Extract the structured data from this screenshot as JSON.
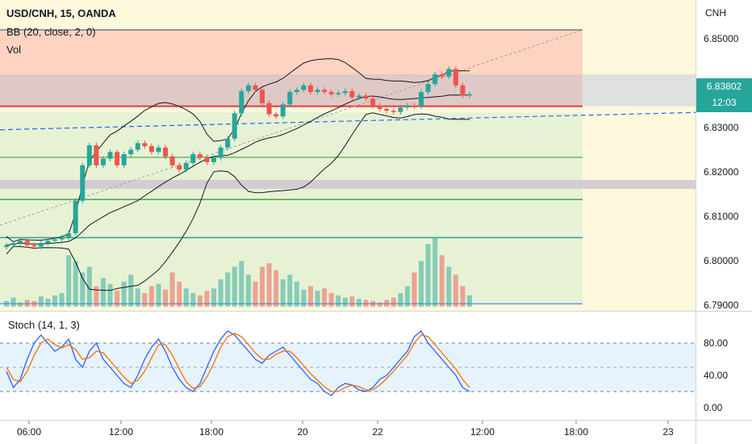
{
  "header": {
    "symbol_line": "USD/CNH, 15, OANDA",
    "bb_line": "BB (20, close, 2, 0)",
    "vol_line": "Vol",
    "currency": "CNH"
  },
  "price_tag": {
    "price": "6.83802",
    "countdown": "12:03"
  },
  "chart_data": [
    {
      "type": "candlestick",
      "title": "USD/CNH, 15, OANDA",
      "y_ticks": [
        "6.85000",
        "6.84000",
        "6.83000",
        "6.82000",
        "6.81000",
        "6.80000",
        "6.79000"
      ],
      "ylim": [
        6.79,
        6.856
      ],
      "x_ticks": [
        "06:00",
        "12:00",
        "18:00",
        "20",
        "22",
        "12:00",
        "18:00",
        "23"
      ],
      "last_price": 6.83802,
      "close_series": [
        6.8035,
        6.804,
        6.8045,
        6.8035,
        6.8032,
        6.804,
        6.8045,
        6.8048,
        6.8052,
        6.8062,
        6.8135,
        6.8215,
        6.826,
        6.8215,
        6.823,
        6.8245,
        6.8215,
        6.824,
        6.825,
        6.8265,
        6.8258,
        6.8245,
        6.8255,
        6.8235,
        6.8215,
        6.8205,
        6.822,
        6.824,
        6.8232,
        6.8222,
        6.8232,
        6.8255,
        6.8275,
        6.8332,
        6.8382,
        6.8395,
        6.8385,
        6.8355,
        6.833,
        6.8325,
        6.8352,
        6.838,
        6.8385,
        6.8395,
        6.838,
        6.8385,
        6.838,
        6.8375,
        6.8378,
        6.8382,
        6.8368,
        6.8372,
        6.8365,
        6.835,
        6.8342,
        6.8338,
        6.8335,
        6.8345,
        6.835,
        6.8348,
        6.838,
        6.8398,
        6.842,
        6.8415,
        6.8432,
        6.8395,
        6.8372,
        6.8375
      ],
      "volume_series": [
        5,
        8,
        4,
        6,
        5,
        9,
        7,
        10,
        12,
        45,
        40,
        30,
        35,
        18,
        25,
        20,
        14,
        22,
        28,
        16,
        12,
        18,
        20,
        15,
        30,
        22,
        16,
        12,
        10,
        14,
        16,
        24,
        30,
        35,
        40,
        28,
        22,
        35,
        38,
        32,
        24,
        28,
        22,
        15,
        18,
        14,
        16,
        12,
        10,
        8,
        9,
        7,
        6,
        5,
        4,
        6,
        8,
        12,
        18,
        30,
        40,
        55,
        60,
        45,
        35,
        28,
        18,
        10
      ],
      "bands": [
        {
          "label": "orange zone",
          "from": 6.8348,
          "to": 6.852,
          "color": "#ffccbc"
        },
        {
          "label": "grey zone",
          "from": 6.8348,
          "to": 6.842,
          "color": "#d9c7c7"
        },
        {
          "label": "green zone",
          "from": 6.7903,
          "to": 6.8334,
          "color": "#e3f1d3"
        },
        {
          "label": "purple zone",
          "from": 6.8162,
          "to": 6.8182,
          "color": "#cfc5d0"
        }
      ],
      "levels": [
        6.852,
        6.8348,
        6.8233,
        6.8138,
        6.8052,
        6.7903
      ]
    },
    {
      "type": "line",
      "title": "Stoch (14, 1, 3)",
      "y_ticks": [
        "80.00",
        "40.00",
        "0.00"
      ],
      "ylim": [
        -10,
        105
      ],
      "upper_band": 80,
      "lower_band": 20,
      "k_series": [
        45,
        25,
        35,
        60,
        80,
        90,
        80,
        70,
        75,
        85,
        60,
        50,
        70,
        80,
        60,
        50,
        40,
        30,
        25,
        40,
        60,
        75,
        85,
        70,
        50,
        35,
        25,
        20,
        30,
        50,
        70,
        85,
        95,
        90,
        80,
        70,
        60,
        55,
        65,
        70,
        75,
        65,
        55,
        45,
        35,
        30,
        20,
        15,
        25,
        30,
        28,
        22,
        20,
        25,
        35,
        40,
        50,
        60,
        70,
        88,
        95,
        80,
        70,
        60,
        50,
        40,
        25,
        20
      ],
      "d_series": [
        50,
        35,
        32,
        45,
        65,
        80,
        85,
        78,
        74,
        78,
        72,
        60,
        62,
        70,
        68,
        58,
        48,
        38,
        30,
        34,
        45,
        62,
        78,
        78,
        65,
        48,
        32,
        24,
        26,
        38,
        55,
        75,
        88,
        92,
        88,
        78,
        68,
        60,
        60,
        66,
        70,
        70,
        62,
        52,
        42,
        34,
        26,
        20,
        20,
        25,
        28,
        26,
        22,
        22,
        28,
        36,
        45,
        55,
        65,
        80,
        90,
        88,
        78,
        68,
        58,
        48,
        35,
        25
      ]
    }
  ]
}
